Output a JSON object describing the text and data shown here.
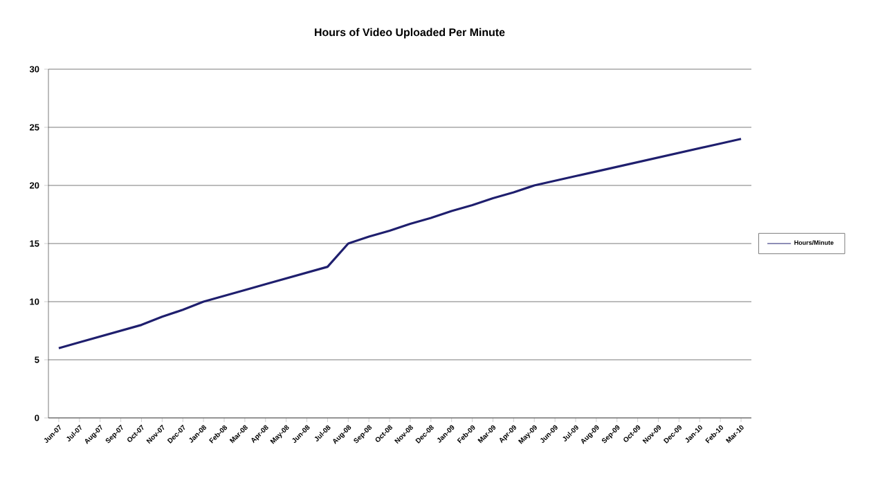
{
  "chart_data": {
    "type": "line",
    "title": "Hours of Video Uploaded Per Minute",
    "categories": [
      "Jun-07",
      "Jul-07",
      "Aug-07",
      "Sep-07",
      "Oct-07",
      "Nov-07",
      "Dec-07",
      "Jan-08",
      "Feb-08",
      "Mar-08",
      "Apr-08",
      "May-08",
      "Jun-08",
      "Jul-08",
      "Aug-08",
      "Sep-08",
      "Oct-08",
      "Nov-08",
      "Dec-08",
      "Jan-09",
      "Feb-09",
      "Mar-09",
      "Apr-09",
      "May-09",
      "Jun-09",
      "Jul-09",
      "Aug-09",
      "Sep-09",
      "Oct-09",
      "Nov-09",
      "Dec-09",
      "Jan-10",
      "Feb-10",
      "Mar-10"
    ],
    "series": [
      {
        "name": "Hours/Minute",
        "color": "#1f1f6e",
        "values": [
          6,
          6.5,
          7,
          7.5,
          8,
          8.7,
          9.3,
          10,
          10.5,
          11,
          11.5,
          12,
          12.5,
          13,
          15,
          15.6,
          16.1,
          16.7,
          17.2,
          17.8,
          18.3,
          18.9,
          19.4,
          20,
          20.4,
          20.8,
          21.2,
          21.6,
          22,
          22.4,
          22.8,
          23.2,
          23.6,
          24
        ]
      }
    ],
    "ylim": [
      0,
      30
    ],
    "yticks": [
      0,
      5,
      10,
      15,
      20,
      25,
      30
    ],
    "grid": "y",
    "legend": "right",
    "marker": "none",
    "line_style": "solid"
  }
}
